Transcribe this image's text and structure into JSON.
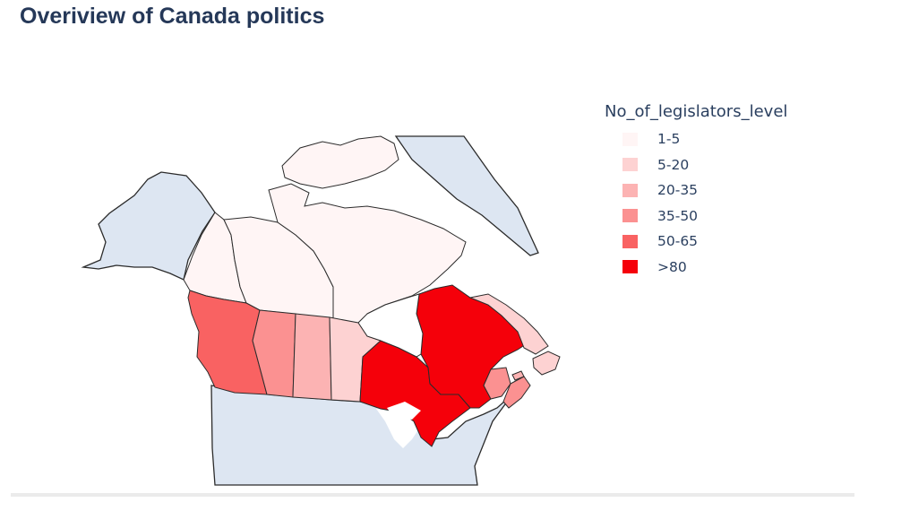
{
  "title": "Overiview of Canada politics",
  "legend": {
    "title": "No_of_legislators_level",
    "items": [
      {
        "label": "1-5",
        "color": "#fff5f5"
      },
      {
        "label": "5-20",
        "color": "#fdd2d2"
      },
      {
        "label": "20-35",
        "color": "#fcb3b3"
      },
      {
        "label": "35-50",
        "color": "#fb9191"
      },
      {
        "label": "50-65",
        "color": "#f96262"
      },
      {
        "label": ">80",
        "color": "#f5000a"
      }
    ]
  },
  "colors": {
    "land": "#dde6f2",
    "water": "#ffffff",
    "border": "#2b2b2b"
  },
  "regions": [
    {
      "name": "Yukon",
      "level": "1-5"
    },
    {
      "name": "Northwest Territories",
      "level": "1-5"
    },
    {
      "name": "Nunavut",
      "level": "1-5"
    },
    {
      "name": "British Columbia",
      "level": "50-65"
    },
    {
      "name": "Alberta",
      "level": "35-50"
    },
    {
      "name": "Saskatchewan",
      "level": "20-35"
    },
    {
      "name": "Manitoba",
      "level": "5-20"
    },
    {
      "name": "Ontario",
      "level": ">80"
    },
    {
      "name": "Quebec",
      "level": ">80"
    },
    {
      "name": "Newfoundland and Labrador",
      "level": "5-20"
    },
    {
      "name": "New Brunswick",
      "level": "35-50"
    },
    {
      "name": "Nova Scotia",
      "level": "35-50"
    },
    {
      "name": "Prince Edward Island",
      "level": "20-35"
    }
  ]
}
